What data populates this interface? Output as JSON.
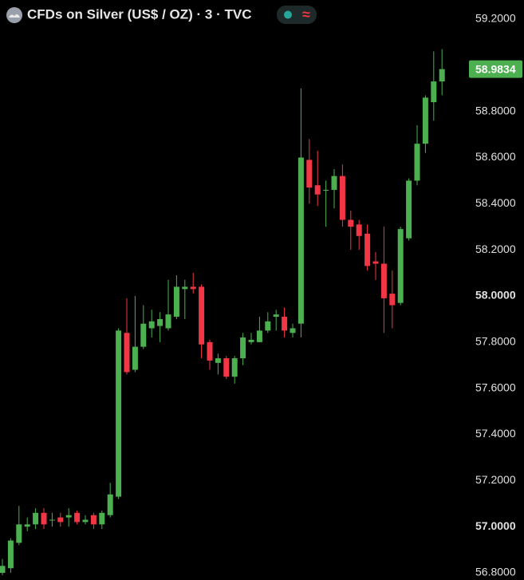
{
  "chart_data": {
    "type": "candlestick",
    "title": "CFDs on Silver (US$ / OZ) · 3 · TVC",
    "status_icon": "≈",
    "up_color": "#4caf50",
    "down_color": "#f23645",
    "grid": false,
    "open": [
      56.8,
      56.82,
      56.93,
      57.0,
      57.01,
      57.06,
      57.03,
      57.04,
      57.04,
      57.06,
      57.02,
      57.05,
      57.01,
      57.05,
      57.13,
      57.84,
      57.68,
      57.78,
      57.86,
      57.87,
      57.86,
      57.91,
      58.03,
      58.04,
      58.04,
      57.8,
      57.71,
      57.73,
      57.65,
      57.73,
      57.8,
      57.8,
      57.85,
      57.91,
      57.91,
      57.84,
      57.88,
      58.59,
      58.48,
      58.46,
      58.46,
      58.52,
      58.33,
      58.31,
      58.27,
      58.15,
      58.14,
      58.01,
      57.97,
      58.25,
      58.5,
      58.66,
      58.84,
      58.93
    ],
    "high": [
      56.86,
      56.95,
      57.09,
      57.04,
      57.08,
      57.08,
      57.06,
      57.06,
      57.08,
      57.07,
      57.05,
      57.06,
      57.07,
      57.19,
      57.86,
      57.99,
      58.0,
      57.96,
      57.94,
      57.93,
      58.07,
      58.09,
      58.07,
      58.1,
      58.05,
      57.81,
      57.75,
      57.74,
      57.74,
      57.84,
      57.84,
      57.91,
      57.93,
      57.94,
      57.95,
      57.88,
      58.9,
      58.68,
      58.63,
      58.5,
      58.55,
      58.57,
      58.37,
      58.33,
      58.31,
      58.19,
      58.3,
      58.11,
      58.3,
      58.51,
      58.74,
      58.87,
      59.06,
      59.07
    ],
    "low": [
      56.79,
      56.8,
      56.92,
      56.98,
      56.99,
      56.99,
      57.0,
      57.0,
      57.0,
      57.01,
      57.01,
      56.99,
      56.99,
      57.04,
      57.12,
      57.66,
      57.67,
      57.77,
      57.82,
      57.8,
      57.85,
      57.9,
      57.9,
      58.01,
      57.73,
      57.68,
      57.66,
      57.64,
      57.62,
      57.7,
      57.79,
      57.8,
      57.84,
      57.85,
      57.82,
      57.82,
      57.82,
      58.4,
      58.39,
      58.3,
      58.38,
      58.3,
      58.2,
      58.2,
      58.11,
      58.07,
      57.84,
      57.86,
      57.96,
      58.24,
      58.48,
      58.62,
      58.76,
      58.87
    ],
    "close": [
      56.83,
      56.94,
      57.01,
      57.01,
      57.06,
      57.01,
      57.03,
      57.02,
      57.05,
      57.02,
      57.03,
      57.01,
      57.06,
      57.14,
      57.85,
      57.67,
      57.78,
      57.88,
      57.89,
      57.9,
      57.92,
      58.04,
      58.04,
      58.03,
      57.79,
      57.72,
      57.73,
      57.65,
      57.73,
      57.82,
      57.81,
      57.85,
      57.89,
      57.92,
      57.85,
      57.86,
      58.6,
      58.47,
      58.44,
      58.46,
      58.52,
      58.33,
      58.3,
      58.26,
      58.13,
      58.14,
      57.99,
      57.96,
      58.29,
      58.5,
      58.66,
      58.86,
      58.93,
      58.9834
    ],
    "ylim": [
      56.8,
      59.2
    ],
    "yticks": [
      {
        "value": 56.8,
        "label": "56.8000"
      },
      {
        "value": 57.0,
        "label": "57.0000"
      },
      {
        "value": 57.2,
        "label": "57.2000"
      },
      {
        "value": 57.4,
        "label": "57.4000"
      },
      {
        "value": 57.6,
        "label": "57.6000"
      },
      {
        "value": 57.8,
        "label": "57.8000"
      },
      {
        "value": 58.0,
        "label": "58.0000"
      },
      {
        "value": 58.2,
        "label": "58.2000"
      },
      {
        "value": 58.4,
        "label": "58.4000"
      },
      {
        "value": 58.6,
        "label": "58.6000"
      },
      {
        "value": 58.8,
        "label": "58.8000"
      },
      {
        "value": 59.2,
        "label": "59.2000"
      }
    ]
  }
}
